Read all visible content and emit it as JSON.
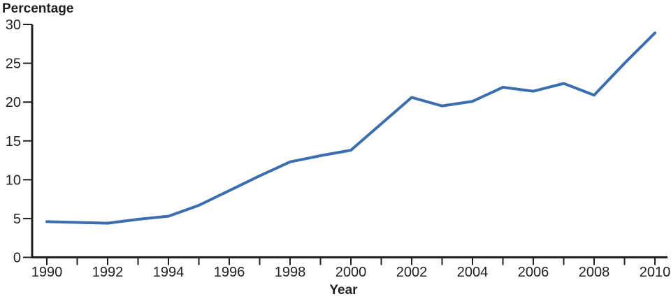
{
  "chart_data": {
    "type": "line",
    "title": "",
    "ylabel": "Percentage",
    "xlabel": "Year",
    "x": [
      1990,
      1991,
      1992,
      1993,
      1994,
      1995,
      1996,
      1997,
      1998,
      1999,
      2000,
      2001,
      2002,
      2003,
      2004,
      2005,
      2006,
      2007,
      2008,
      2009,
      2010
    ],
    "series": [
      {
        "name": "percentage",
        "values": [
          4.6,
          4.5,
          4.4,
          4.9,
          5.3,
          6.7,
          8.6,
          10.5,
          12.3,
          13.1,
          13.8,
          17.2,
          20.6,
          19.5,
          20.1,
          21.9,
          21.4,
          22.4,
          20.9,
          25.0,
          28.9
        ]
      }
    ],
    "xlim": [
      1990,
      2010
    ],
    "ylim": [
      0,
      30
    ],
    "xtick_labels": [
      1990,
      1992,
      1994,
      1996,
      1998,
      2000,
      2002,
      2004,
      2006,
      2008,
      2010
    ],
    "yticks": [
      0,
      5,
      10,
      15,
      20,
      25,
      30
    ],
    "grid": false,
    "legend": "none",
    "line_color": "#3A6EAE",
    "axis_color": "#231F20",
    "text_color": "#231F20"
  }
}
